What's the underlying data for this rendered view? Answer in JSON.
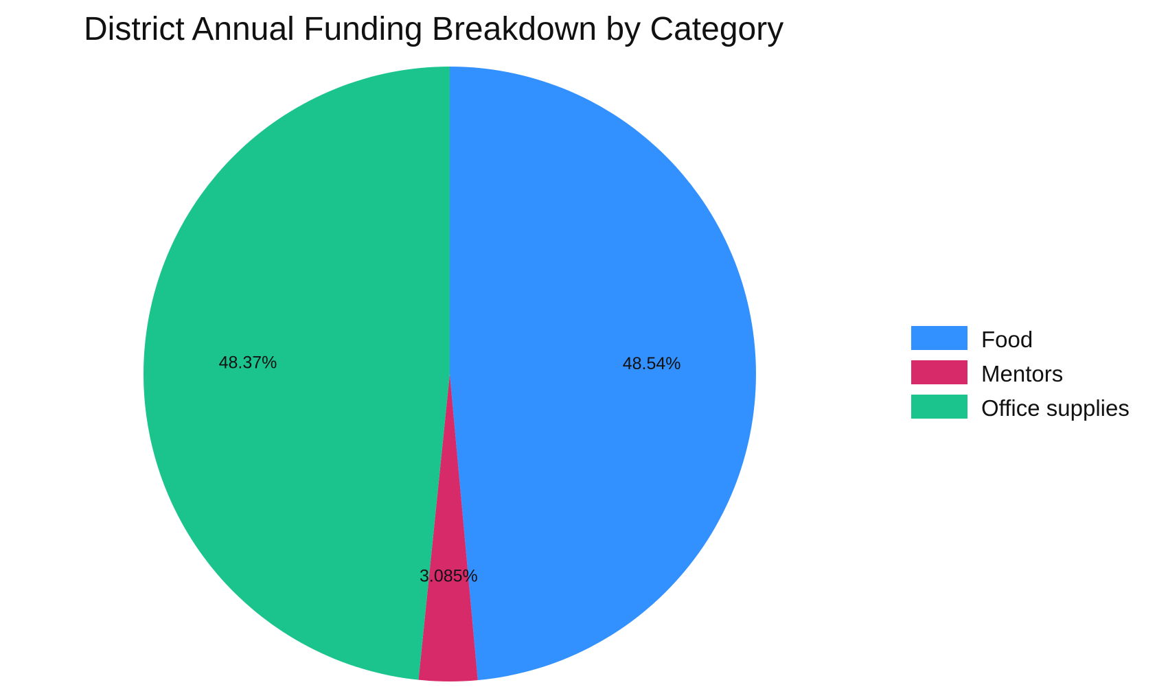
{
  "chart_data": {
    "type": "pie",
    "title": "District Annual Funding Breakdown by Category",
    "categories": [
      "Food",
      "Mentors",
      "Office supplies"
    ],
    "values": [
      48.54,
      3.085,
      48.37
    ],
    "data_labels": [
      "48.54%",
      "3.085%",
      "48.37%"
    ],
    "colors": [
      "#3391ff",
      "#d72a69",
      "#1bc48d"
    ],
    "start_angle": "12 o'clock",
    "direction": "clockwise",
    "legend_position": "right",
    "legend": [
      {
        "label": "Food",
        "color": "#3391ff"
      },
      {
        "label": "Mentors",
        "color": "#d72a69"
      },
      {
        "label": "Office supplies",
        "color": "#1bc48d"
      }
    ]
  }
}
